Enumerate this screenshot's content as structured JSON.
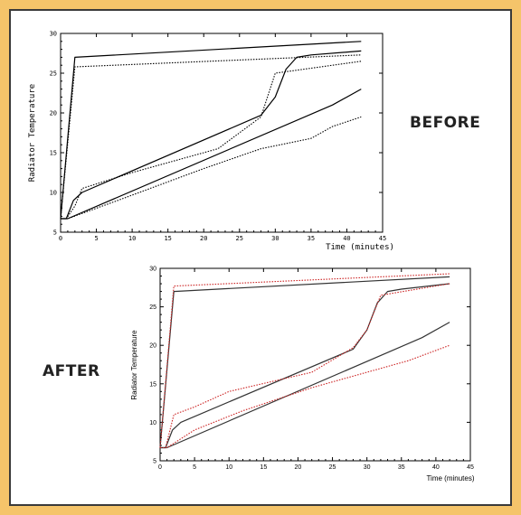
{
  "labels": {
    "before": "BEFORE",
    "after": "AFTER"
  },
  "colors": {
    "background": "#f5c46a",
    "black": "#000000",
    "red": "#cc2222"
  },
  "chart_data": [
    {
      "type": "line",
      "title": "",
      "xlabel": "Time (minutes)",
      "ylabel": "Radiator Temperature",
      "xlim": [
        0,
        45
      ],
      "ylim": [
        5,
        30
      ],
      "xticks": [
        0,
        5,
        10,
        15,
        20,
        25,
        30,
        35,
        40,
        45
      ],
      "yticks": [
        5,
        10,
        15,
        20,
        25,
        30
      ],
      "series": [
        {
          "style": "solid",
          "color": "#000000",
          "points": [
            [
              0,
              6.7
            ],
            [
              2,
              27
            ],
            [
              42,
              29
            ]
          ]
        },
        {
          "style": "dotted",
          "color": "#000000",
          "points": [
            [
              0,
              6.7
            ],
            [
              2,
              25.8
            ],
            [
              42,
              27.3
            ]
          ]
        },
        {
          "style": "solid",
          "color": "#000000",
          "points": [
            [
              0,
              6.7
            ],
            [
              0.8,
              6.7
            ],
            [
              1.8,
              9
            ],
            [
              3,
              10
            ],
            [
              28,
              19.7
            ],
            [
              30,
              22
            ],
            [
              31.5,
              25.5
            ],
            [
              33,
              27
            ],
            [
              35,
              27.3
            ],
            [
              42,
              27.8
            ]
          ]
        },
        {
          "style": "dotted",
          "color": "#000000",
          "points": [
            [
              0,
              6.7
            ],
            [
              0.8,
              6.7
            ],
            [
              2,
              8.3
            ],
            [
              3,
              10.5
            ],
            [
              10,
              12.5
            ],
            [
              22,
              15.5
            ],
            [
              28,
              19.5
            ],
            [
              30,
              25
            ],
            [
              42,
              26.5
            ]
          ]
        },
        {
          "style": "solid",
          "color": "#000000",
          "points": [
            [
              0,
              6.7
            ],
            [
              1,
              6.7
            ],
            [
              38,
              21
            ],
            [
              42,
              23
            ]
          ]
        },
        {
          "style": "dotted",
          "color": "#000000",
          "points": [
            [
              0,
              6.7
            ],
            [
              1,
              6.7
            ],
            [
              8,
              9
            ],
            [
              20,
              13
            ],
            [
              28,
              15.5
            ],
            [
              35,
              16.8
            ],
            [
              38,
              18.3
            ],
            [
              42,
              19.5
            ]
          ]
        }
      ]
    },
    {
      "type": "line",
      "title": "",
      "xlabel": "Time (minutes)",
      "ylabel": "Radiator Temperature",
      "xlim": [
        0,
        45
      ],
      "ylim": [
        5,
        30
      ],
      "xticks": [
        0,
        5,
        10,
        15,
        20,
        25,
        30,
        35,
        40,
        45
      ],
      "yticks": [
        5,
        10,
        15,
        20,
        25,
        30
      ],
      "series": [
        {
          "style": "solid",
          "color": "#333333",
          "points": [
            [
              0,
              6.7
            ],
            [
              2,
              27
            ],
            [
              42,
              28.9
            ]
          ]
        },
        {
          "style": "dotted",
          "color": "#cc2222",
          "points": [
            [
              0,
              6.7
            ],
            [
              2,
              27.7
            ],
            [
              42,
              29.3
            ]
          ]
        },
        {
          "style": "solid",
          "color": "#333333",
          "points": [
            [
              0,
              6.7
            ],
            [
              0.8,
              6.7
            ],
            [
              1.8,
              9
            ],
            [
              3,
              10
            ],
            [
              28,
              19.5
            ],
            [
              30,
              22
            ],
            [
              31.5,
              25.5
            ],
            [
              33,
              27
            ],
            [
              35,
              27.3
            ],
            [
              42,
              28
            ]
          ]
        },
        {
          "style": "dotted",
          "color": "#cc2222",
          "points": [
            [
              0,
              6.7
            ],
            [
              0.8,
              6.7
            ],
            [
              2,
              11
            ],
            [
              5,
              12
            ],
            [
              10,
              14
            ],
            [
              22,
              16.5
            ],
            [
              28,
              19.7
            ],
            [
              30,
              22
            ],
            [
              32,
              26.5
            ],
            [
              42,
              28
            ]
          ]
        },
        {
          "style": "solid",
          "color": "#333333",
          "points": [
            [
              0,
              6.7
            ],
            [
              1,
              6.7
            ],
            [
              38,
              21
            ],
            [
              42,
              23
            ]
          ]
        },
        {
          "style": "dotted",
          "color": "#cc2222",
          "points": [
            [
              0,
              6.7
            ],
            [
              1,
              6.7
            ],
            [
              5,
              9
            ],
            [
              12,
              11.5
            ],
            [
              22,
              14.5
            ],
            [
              30,
              16.5
            ],
            [
              36,
              18
            ],
            [
              42,
              20
            ]
          ]
        }
      ]
    }
  ]
}
